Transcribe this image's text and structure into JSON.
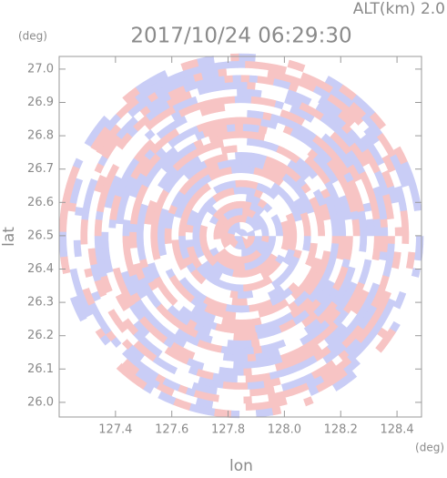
{
  "chart_data": {
    "type": "ppi",
    "title": "2017/10/24 06:29:30",
    "subtitle": "ALT(km) 2.0",
    "x_label": "lon",
    "y_label": "lat",
    "x_unit": "(deg)",
    "y_unit": "(deg)",
    "xlim": [
      127.2,
      128.487
    ],
    "ylim": [
      25.956,
      27.038
    ],
    "xticks": [
      127.4,
      127.6,
      127.8,
      {
        "value": 128,
        "label": "128.0"
      },
      128.2,
      128.4
    ],
    "yticks": [
      {
        "value": 26,
        "label": "26.0"
      },
      26.1,
      26.2,
      26.3,
      26.4,
      26.5,
      26.6,
      26.7,
      26.8,
      26.9,
      {
        "value": 27,
        "label": "27.0"
      }
    ],
    "colors": [
      "#f7c4c4",
      "#c9cdf6",
      "#ffffff"
    ]
  }
}
